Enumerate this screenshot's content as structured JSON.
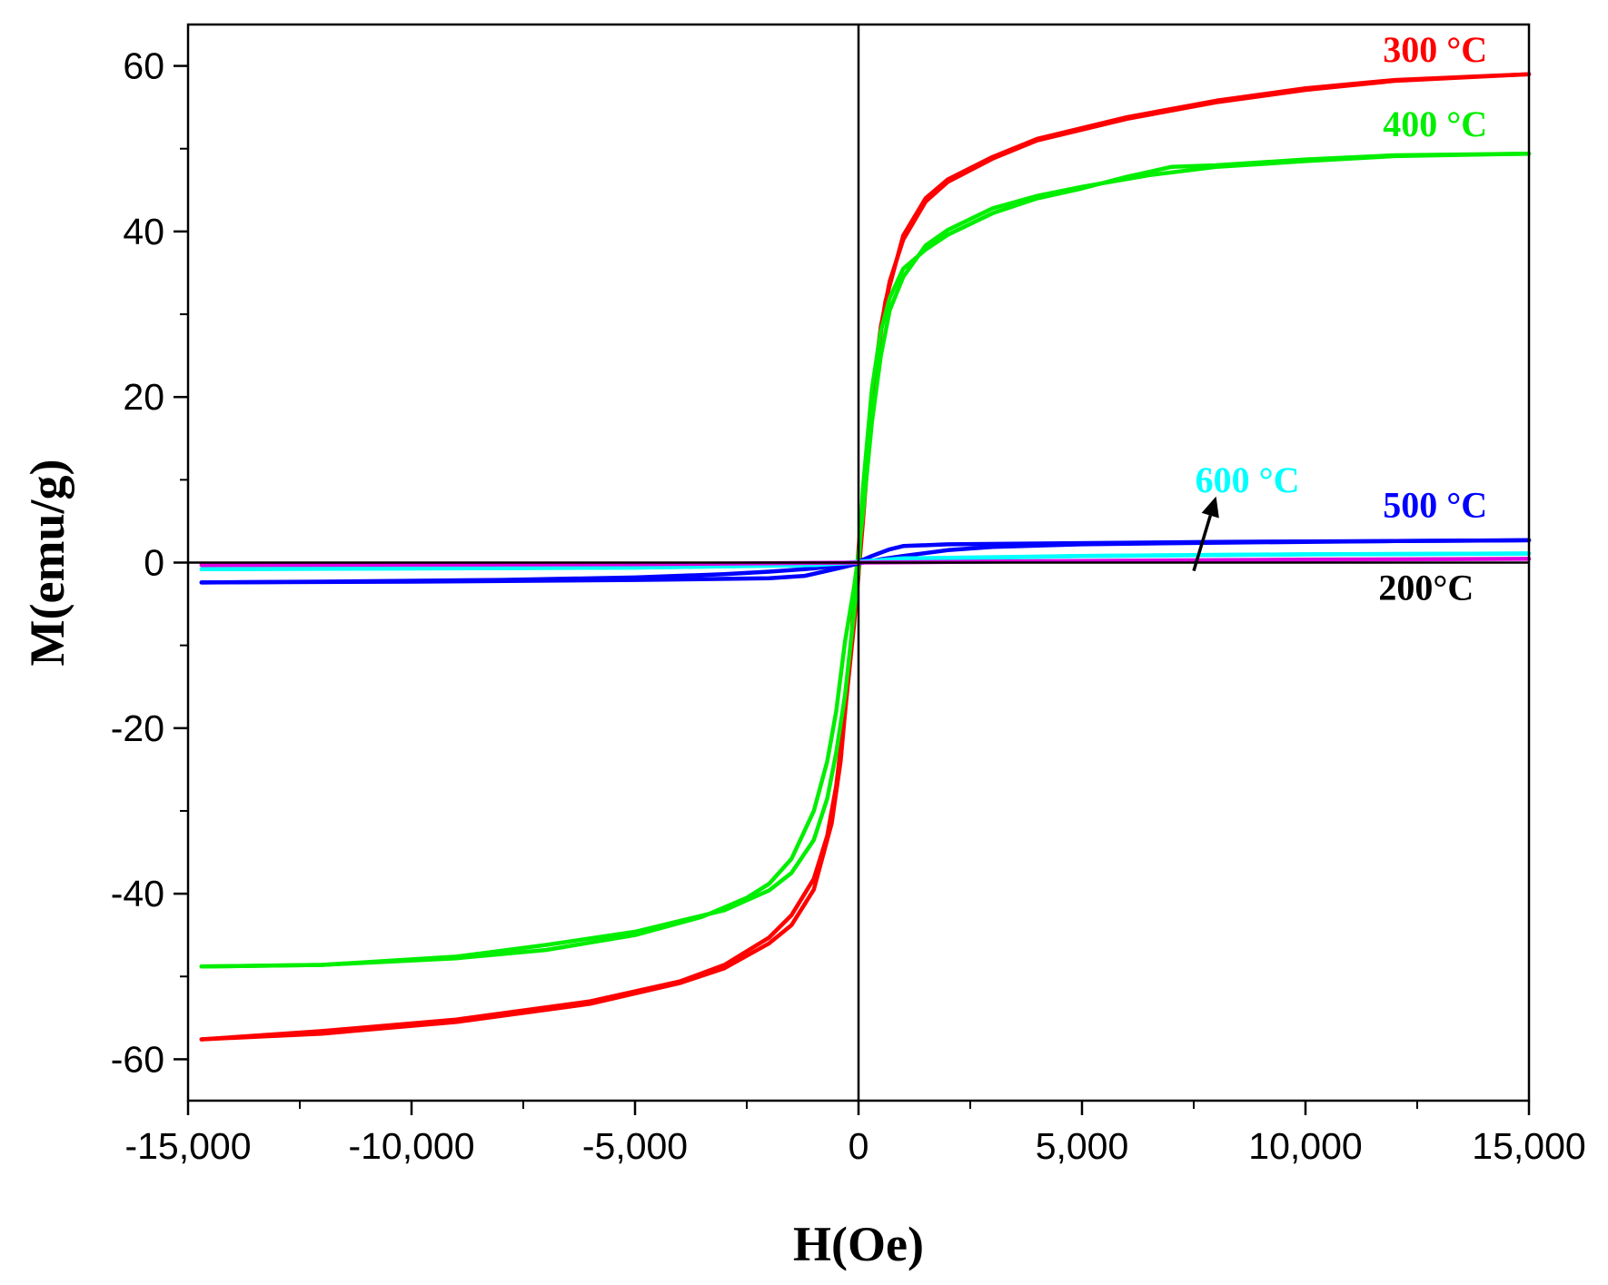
{
  "chart_data": {
    "type": "line",
    "title": "",
    "xlabel": "H(Oe)",
    "ylabel": "M(emu/g)",
    "xlim": [
      -15000,
      15000
    ],
    "ylim": [
      -65,
      65
    ],
    "xticks": [
      -15000,
      -10000,
      -5000,
      0,
      5000,
      10000,
      15000
    ],
    "xtick_labels": [
      "-15,000",
      "-10,000",
      "-5,000",
      "0",
      "5,000",
      "10,000",
      "15,000"
    ],
    "yticks": [
      -60,
      -40,
      -20,
      0,
      20,
      40,
      60
    ],
    "ytick_labels": [
      "-60",
      "-40",
      "-20",
      "0",
      "20",
      "40",
      "60"
    ],
    "grid": false,
    "series": [
      {
        "name": "300 °C",
        "label": "300 °C",
        "color": "#ff0000",
        "branches": [
          [
            [
              -14700,
              -57.6
            ],
            [
              -12000,
              -56.6
            ],
            [
              -9000,
              -55.2
            ],
            [
              -6000,
              -53.0
            ],
            [
              -4000,
              -50.6
            ],
            [
              -3000,
              -48.6
            ],
            [
              -2000,
              -45.3
            ],
            [
              -1500,
              -42.6
            ],
            [
              -1000,
              -38.2
            ],
            [
              -700,
              -33.0
            ],
            [
              -500,
              -27.0
            ],
            [
              -300,
              -18.0
            ],
            [
              -100,
              -7.5
            ],
            [
              0,
              -1.5
            ],
            [
              100,
              5.0
            ],
            [
              200,
              12.0
            ],
            [
              400,
              24.0
            ],
            [
              600,
              31.5
            ],
            [
              1000,
              39.5
            ],
            [
              1500,
              44.0
            ],
            [
              2000,
              46.3
            ],
            [
              3000,
              49.0
            ],
            [
              4000,
              51.2
            ],
            [
              6000,
              53.8
            ],
            [
              8000,
              55.8
            ],
            [
              10000,
              57.3
            ],
            [
              12000,
              58.3
            ],
            [
              15000,
              59.0
            ]
          ],
          [
            [
              15000,
              59.0
            ],
            [
              12000,
              58.2
            ],
            [
              10000,
              57.1
            ],
            [
              8000,
              55.6
            ],
            [
              6000,
              53.6
            ],
            [
              4000,
              51.0
            ],
            [
              3000,
              48.8
            ],
            [
              2000,
              46.0
            ],
            [
              1500,
              43.6
            ],
            [
              1000,
              39.0
            ],
            [
              700,
              34.0
            ],
            [
              500,
              28.5
            ],
            [
              300,
              20.0
            ],
            [
              100,
              8.0
            ],
            [
              0,
              1.5
            ],
            [
              -100,
              -5.0
            ],
            [
              -200,
              -12.0
            ],
            [
              -400,
              -24.0
            ],
            [
              -600,
              -31.5
            ],
            [
              -1000,
              -39.5
            ],
            [
              -1500,
              -43.8
            ],
            [
              -2000,
              -46.0
            ],
            [
              -3000,
              -49.0
            ],
            [
              -4000,
              -50.8
            ],
            [
              -6000,
              -53.3
            ],
            [
              -9000,
              -55.5
            ],
            [
              -12000,
              -56.9
            ],
            [
              -14700,
              -57.6
            ]
          ]
        ]
      },
      {
        "name": "400 °C",
        "label": "400 °C",
        "color": "#00ee00",
        "branches": [
          [
            [
              -14700,
              -48.8
            ],
            [
              -12000,
              -48.6
            ],
            [
              -9000,
              -47.8
            ],
            [
              -7000,
              -46.8
            ],
            [
              -5000,
              -45.0
            ],
            [
              -3500,
              -42.8
            ],
            [
              -2500,
              -40.5
            ],
            [
              -2000,
              -38.8
            ],
            [
              -1500,
              -35.8
            ],
            [
              -1000,
              -30.0
            ],
            [
              -700,
              -24.0
            ],
            [
              -500,
              -18.0
            ],
            [
              -300,
              -9.5
            ],
            [
              -100,
              -3.0
            ],
            [
              0,
              1.0
            ],
            [
              100,
              6.0
            ],
            [
              300,
              17.0
            ],
            [
              500,
              25.0
            ],
            [
              700,
              30.5
            ],
            [
              1000,
              34.5
            ],
            [
              1500,
              38.3
            ],
            [
              2000,
              40.2
            ],
            [
              3000,
              42.8
            ],
            [
              4000,
              44.3
            ],
            [
              5000,
              45.4
            ],
            [
              6500,
              46.8
            ],
            [
              8000,
              47.8
            ],
            [
              10000,
              48.5
            ],
            [
              12000,
              49.1
            ],
            [
              15000,
              49.4
            ]
          ],
          [
            [
              15000,
              49.4
            ],
            [
              12000,
              49.2
            ],
            [
              10000,
              48.7
            ],
            [
              8000,
              48.0
            ],
            [
              7000,
              47.8
            ],
            [
              6000,
              46.6
            ],
            [
              5000,
              45.2
            ],
            [
              4000,
              44.0
            ],
            [
              3000,
              42.2
            ],
            [
              2000,
              39.6
            ],
            [
              1500,
              37.8
            ],
            [
              1000,
              35.5
            ],
            [
              700,
              32.0
            ],
            [
              500,
              28.0
            ],
            [
              300,
              21.0
            ],
            [
              100,
              9.0
            ],
            [
              0,
              -1.0
            ],
            [
              -100,
              -6.0
            ],
            [
              -300,
              -16.0
            ],
            [
              -500,
              -23.0
            ],
            [
              -700,
              -28.5
            ],
            [
              -1000,
              -33.5
            ],
            [
              -1500,
              -37.5
            ],
            [
              -2000,
              -39.6
            ],
            [
              -3000,
              -42.0
            ],
            [
              -5000,
              -44.6
            ],
            [
              -7000,
              -46.2
            ],
            [
              -9000,
              -47.6
            ],
            [
              -12000,
              -48.6
            ],
            [
              -14700,
              -48.8
            ]
          ]
        ]
      },
      {
        "name": "500 °C",
        "label": "500 °C",
        "color": "#0000ff",
        "branches": [
          [
            [
              -14700,
              -2.4
            ],
            [
              -12000,
              -2.3
            ],
            [
              -8000,
              -2.1
            ],
            [
              -5000,
              -1.8
            ],
            [
              -3000,
              -1.4
            ],
            [
              -2000,
              -1.1
            ],
            [
              -1000,
              -0.7
            ],
            [
              -500,
              -0.4
            ],
            [
              0,
              0.1
            ],
            [
              300,
              0.8
            ],
            [
              700,
              1.6
            ],
            [
              1000,
              2.0
            ],
            [
              2000,
              2.2
            ],
            [
              4000,
              2.3
            ],
            [
              8000,
              2.5
            ],
            [
              12000,
              2.6
            ],
            [
              15000,
              2.7
            ]
          ],
          [
            [
              15000,
              2.7
            ],
            [
              12000,
              2.6
            ],
            [
              8000,
              2.4
            ],
            [
              5000,
              2.2
            ],
            [
              3000,
              1.9
            ],
            [
              2000,
              1.5
            ],
            [
              1000,
              0.8
            ],
            [
              500,
              0.4
            ],
            [
              0,
              -0.1
            ],
            [
              -300,
              -0.5
            ],
            [
              -700,
              -1.0
            ],
            [
              -1200,
              -1.6
            ],
            [
              -2000,
              -1.9
            ],
            [
              -5000,
              -2.1
            ],
            [
              -10000,
              -2.3
            ],
            [
              -14700,
              -2.4
            ]
          ]
        ]
      },
      {
        "name": "600 °C",
        "label": "600 °C",
        "color": "#00ffff",
        "branches": [
          [
            [
              -14700,
              -0.8
            ],
            [
              -10000,
              -0.7
            ],
            [
              -5000,
              -0.6
            ],
            [
              -1000,
              -0.3
            ],
            [
              0,
              0.0
            ],
            [
              1000,
              0.4
            ],
            [
              5000,
              0.8
            ],
            [
              10000,
              1.0
            ],
            [
              15000,
              1.1
            ]
          ],
          [
            [
              15000,
              1.1
            ],
            [
              10000,
              1.0
            ],
            [
              5000,
              0.8
            ],
            [
              1000,
              0.5
            ],
            [
              0,
              0.1
            ],
            [
              -1000,
              -0.3
            ],
            [
              -5000,
              -0.6
            ],
            [
              -14700,
              -0.8
            ]
          ]
        ]
      },
      {
        "name": "200°C",
        "label": "200°C",
        "color": "#dd00dd",
        "branches": [
          [
            [
              -14700,
              -0.3
            ],
            [
              -5000,
              -0.2
            ],
            [
              0,
              0.0
            ],
            [
              5000,
              0.2
            ],
            [
              10000,
              0.35
            ],
            [
              15000,
              0.45
            ]
          ]
        ]
      }
    ],
    "annotations": [
      {
        "text": "300 °C",
        "color": "#ff0000",
        "x": 12900,
        "y": 60.5
      },
      {
        "text": "400 °C",
        "color": "#00ee00",
        "x": 12900,
        "y": 51.5
      },
      {
        "text": "600 °C",
        "color": "#00ffff",
        "x": 8700,
        "y": 8.5
      },
      {
        "text": "500 °C",
        "color": "#0000ff",
        "x": 12900,
        "y": 5.5
      },
      {
        "text": "200°C",
        "color": "#000000",
        "x": 12700,
        "y": -4.5
      }
    ],
    "arrow": {
      "from": [
        7500,
        -1.0
      ],
      "to": [
        8000,
        8.0
      ],
      "color": "#000000"
    }
  }
}
